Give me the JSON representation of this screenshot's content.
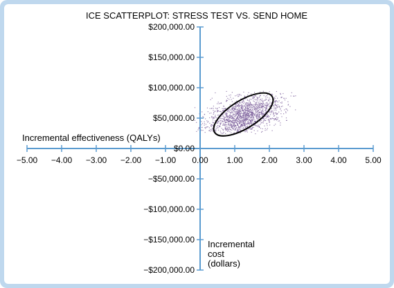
{
  "chart_data": {
    "type": "scatter",
    "title": "ICE SCATTERPLOT: STRESS TEST VS. SEND HOME",
    "xlabel": "Incremental effectiveness (QALYs)",
    "ylabel_lines": [
      "Incremental",
      "cost",
      "(dollars)"
    ],
    "xlim": [
      -5,
      5
    ],
    "ylim": [
      -200000,
      200000
    ],
    "x_ticks": [
      -5,
      -4,
      -3,
      -2,
      -1,
      0,
      1,
      2,
      3,
      4,
      5
    ],
    "x_tick_labels": [
      "−5.00",
      "−4.00",
      "−3.00",
      "−2.00",
      "−1.00",
      "0.00",
      "1.00",
      "2.00",
      "3.00",
      "4.00",
      "5.00"
    ],
    "y_ticks": [
      200000,
      150000,
      100000,
      50000,
      0,
      -50000,
      -100000,
      -150000,
      -200000
    ],
    "y_tick_labels": [
      "$200,000.00",
      "$150,000.00",
      "$100,000.00",
      "$50,000.00",
      "$0.00",
      "−$50,000.00",
      "−$100,000.00",
      "−$150,000.00",
      "−$200,000.00"
    ],
    "grid": false,
    "point_cloud": {
      "center_x": 1.25,
      "center_y": 55000,
      "x_range": [
        -0.2,
        2.75
      ],
      "y_range": [
        25000,
        95000
      ],
      "color": "#7a5c9a"
    },
    "confidence_ellipse": {
      "center_x": 1.25,
      "center_y": 56000,
      "x_extent": [
        0.2,
        2.0
      ],
      "y_extent": [
        16000,
        98000
      ],
      "color": "#000000"
    },
    "colors": {
      "axis": "#5a9bd0",
      "frame": "#bfd8ee"
    }
  }
}
